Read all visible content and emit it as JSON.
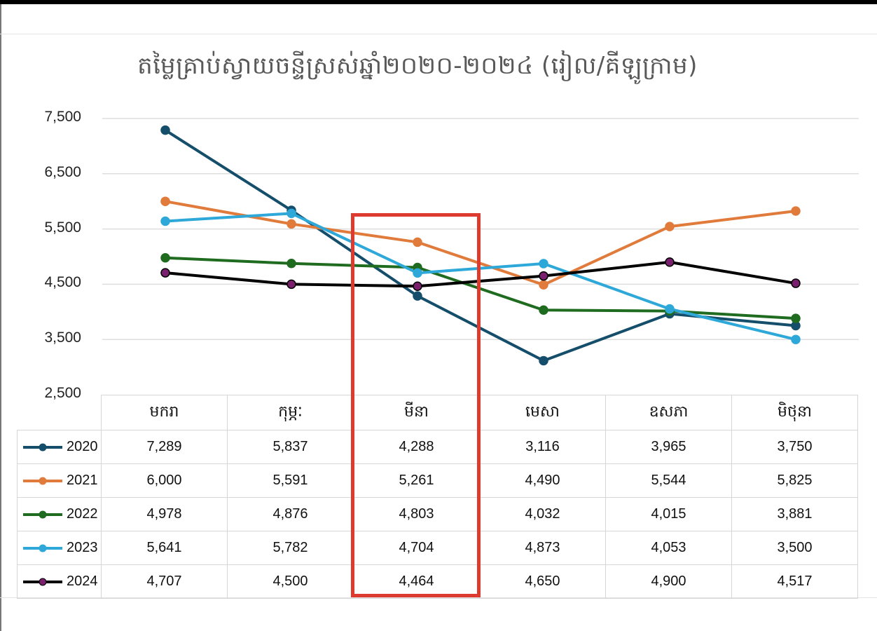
{
  "chart_data": {
    "type": "line",
    "title": "តម្លៃគ្រាប់ស្វាយចន្ទីស្រស់ឆ្នាំ២០២០-២០២៤ (រៀល/គីឡូក្រាម)",
    "categories": [
      "មករា",
      "កុម្ភៈ",
      "មីនា",
      "មេសា",
      "ឧសភា",
      "មិថុនា"
    ],
    "ylim": [
      2500,
      7500
    ],
    "yticks": [
      2500,
      3500,
      4500,
      5500,
      6500,
      7500
    ],
    "ytick_labels": [
      "2,500",
      "3,500",
      "4,500",
      "5,500",
      "6,500",
      "7,500"
    ],
    "grid": true,
    "legend": "data-table-below",
    "highlighted_category": "មីនា",
    "series": [
      {
        "name": "2020",
        "color": "#154e6b",
        "marker_color": "#154e6b",
        "values": [
          7289,
          5837,
          4288,
          3116,
          3965,
          3750
        ],
        "labels": [
          "7,289",
          "5,837",
          "4,288",
          "3,116",
          "3,965",
          "3,750"
        ]
      },
      {
        "name": "2021",
        "color": "#e07b3c",
        "marker_color": "#e07b3c",
        "values": [
          6000,
          5591,
          5261,
          4490,
          5544,
          5825
        ],
        "labels": [
          "6,000",
          "5,591",
          "5,261",
          "4,490",
          "5,544",
          "5,825"
        ]
      },
      {
        "name": "2022",
        "color": "#1f6b1f",
        "marker_color": "#1f6b1f",
        "values": [
          4978,
          4876,
          4803,
          4032,
          4015,
          3881
        ],
        "labels": [
          "4,978",
          "4,876",
          "4,803",
          "4,032",
          "4,015",
          "3,881"
        ]
      },
      {
        "name": "2023",
        "color": "#2ea8d8",
        "marker_color": "#2ea8d8",
        "values": [
          5641,
          5782,
          4704,
          4873,
          4053,
          3500
        ],
        "labels": [
          "5,641",
          "5,782",
          "4,704",
          "4,873",
          "4,053",
          "3,500"
        ]
      },
      {
        "name": "2024",
        "color": "#000000",
        "marker_color": "#7a1f6e",
        "values": [
          4707,
          4500,
          4464,
          4650,
          4900,
          4517
        ],
        "labels": [
          "4,707",
          "4,500",
          "4,464",
          "4,650",
          "4,900",
          "4,517"
        ]
      }
    ]
  }
}
